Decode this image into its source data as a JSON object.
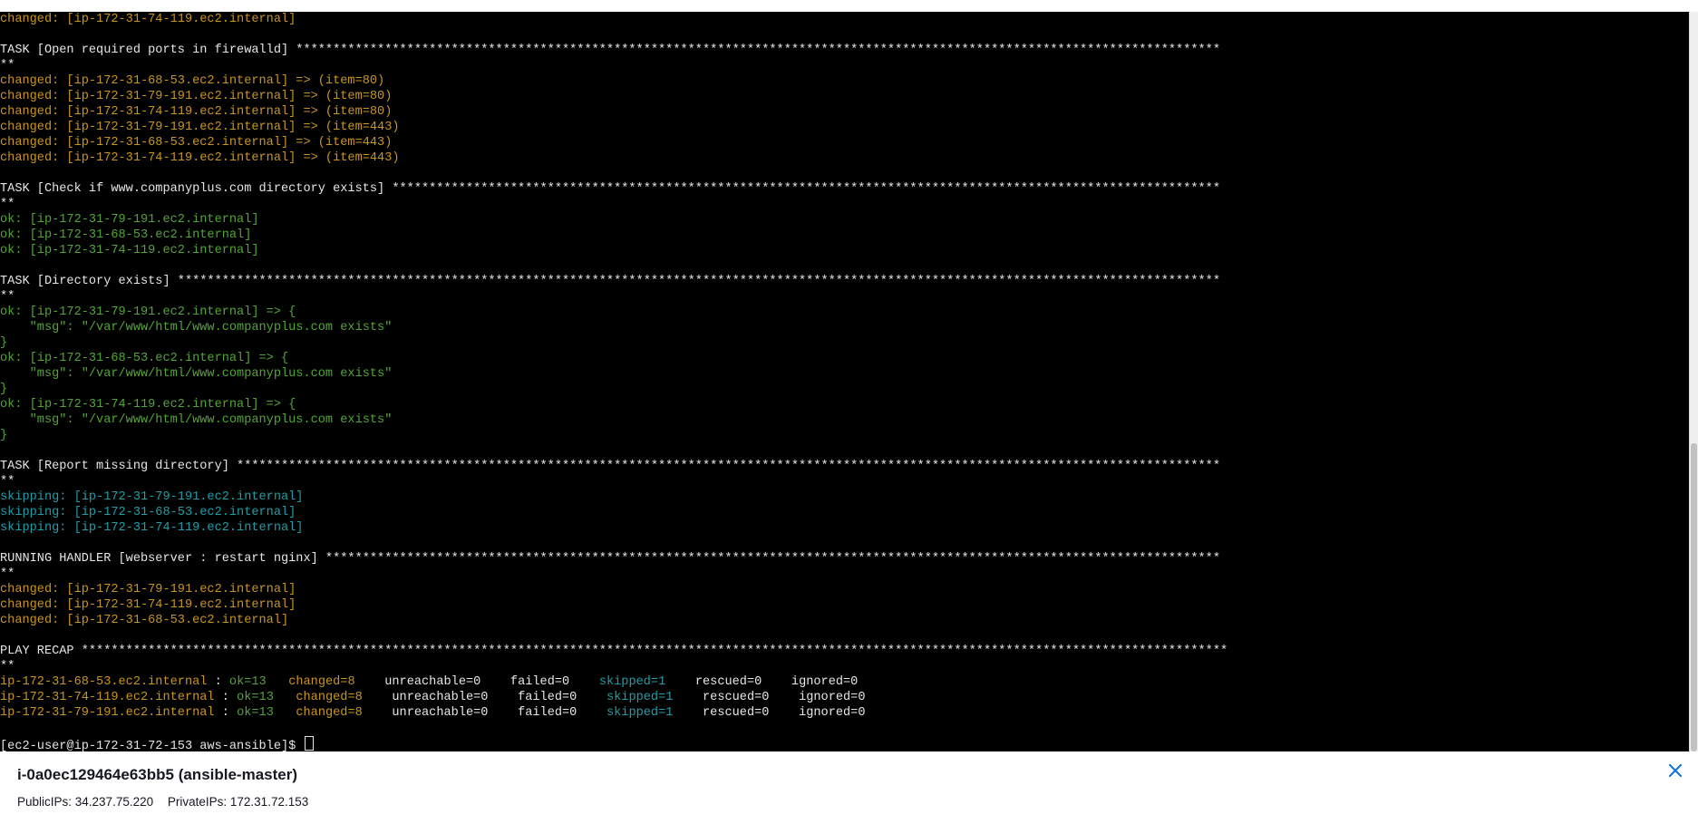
{
  "terminal": {
    "lines": [
      [
        [
          "changed",
          "changed: [ip-172-31-74-119.ec2.internal]"
        ]
      ],
      [
        [
          "default",
          ""
        ]
      ],
      [
        [
          "default",
          "TASK [Open required ports in firewalld] *****************************************************************************************************************************"
        ]
      ],
      [
        [
          "default",
          "**"
        ]
      ],
      [
        [
          "changed",
          "changed: [ip-172-31-68-53.ec2.internal] => (item=80)"
        ]
      ],
      [
        [
          "changed",
          "changed: [ip-172-31-79-191.ec2.internal] => (item=80)"
        ]
      ],
      [
        [
          "changed",
          "changed: [ip-172-31-74-119.ec2.internal] => (item=80)"
        ]
      ],
      [
        [
          "changed",
          "changed: [ip-172-31-79-191.ec2.internal] => (item=443)"
        ]
      ],
      [
        [
          "changed",
          "changed: [ip-172-31-68-53.ec2.internal] => (item=443)"
        ]
      ],
      [
        [
          "changed",
          "changed: [ip-172-31-74-119.ec2.internal] => (item=443)"
        ]
      ],
      [
        [
          "default",
          ""
        ]
      ],
      [
        [
          "default",
          "TASK [Check if www.companyplus.com directory exists] ****************************************************************************************************************"
        ]
      ],
      [
        [
          "default",
          "**"
        ]
      ],
      [
        [
          "ok",
          "ok: [ip-172-31-79-191.ec2.internal]"
        ]
      ],
      [
        [
          "ok",
          "ok: [ip-172-31-68-53.ec2.internal]"
        ]
      ],
      [
        [
          "ok",
          "ok: [ip-172-31-74-119.ec2.internal]"
        ]
      ],
      [
        [
          "default",
          ""
        ]
      ],
      [
        [
          "default",
          "TASK [Directory exists] *********************************************************************************************************************************************"
        ]
      ],
      [
        [
          "default",
          "**"
        ]
      ],
      [
        [
          "ok",
          "ok: [ip-172-31-79-191.ec2.internal] => {"
        ]
      ],
      [
        [
          "ok",
          "    \"msg\": \"/var/www/html/www.companyplus.com exists\""
        ]
      ],
      [
        [
          "ok",
          "}"
        ]
      ],
      [
        [
          "ok",
          "ok: [ip-172-31-68-53.ec2.internal] => {"
        ]
      ],
      [
        [
          "ok",
          "    \"msg\": \"/var/www/html/www.companyplus.com exists\""
        ]
      ],
      [
        [
          "ok",
          "}"
        ]
      ],
      [
        [
          "ok",
          "ok: [ip-172-31-74-119.ec2.internal] => {"
        ]
      ],
      [
        [
          "ok",
          "    \"msg\": \"/var/www/html/www.companyplus.com exists\""
        ]
      ],
      [
        [
          "ok",
          "}"
        ]
      ],
      [
        [
          "default",
          ""
        ]
      ],
      [
        [
          "default",
          "TASK [Report missing directory] *************************************************************************************************************************************"
        ]
      ],
      [
        [
          "default",
          "**"
        ]
      ],
      [
        [
          "skip",
          "skipping: [ip-172-31-79-191.ec2.internal]"
        ]
      ],
      [
        [
          "skip",
          "skipping: [ip-172-31-68-53.ec2.internal]"
        ]
      ],
      [
        [
          "skip",
          "skipping: [ip-172-31-74-119.ec2.internal]"
        ]
      ],
      [
        [
          "default",
          ""
        ]
      ],
      [
        [
          "default",
          "RUNNING HANDLER [webserver : restart nginx] *************************************************************************************************************************"
        ]
      ],
      [
        [
          "default",
          "**"
        ]
      ],
      [
        [
          "changed",
          "changed: [ip-172-31-79-191.ec2.internal]"
        ]
      ],
      [
        [
          "changed",
          "changed: [ip-172-31-74-119.ec2.internal]"
        ]
      ],
      [
        [
          "changed",
          "changed: [ip-172-31-68-53.ec2.internal]"
        ]
      ],
      [
        [
          "default",
          ""
        ]
      ],
      [
        [
          "default",
          "PLAY RECAP ***********************************************************************************************************************************************************"
        ]
      ],
      [
        [
          "default",
          "**"
        ]
      ],
      [
        [
          "changed",
          "ip-172-31-68-53.ec2.internal"
        ],
        [
          "default",
          " : "
        ],
        [
          "ok",
          "ok=13"
        ],
        [
          "default",
          "   "
        ],
        [
          "changed",
          "changed=8"
        ],
        [
          "default",
          "    unreachable=0    failed=0    "
        ],
        [
          "skip",
          "skipped=1"
        ],
        [
          "default",
          "    rescued=0    ignored=0"
        ]
      ],
      [
        [
          "changed",
          "ip-172-31-74-119.ec2.internal"
        ],
        [
          "default",
          " : "
        ],
        [
          "ok",
          "ok=13"
        ],
        [
          "default",
          "   "
        ],
        [
          "changed",
          "changed=8"
        ],
        [
          "default",
          "    unreachable=0    failed=0    "
        ],
        [
          "skip",
          "skipped=1"
        ],
        [
          "default",
          "    rescued=0    ignored=0"
        ]
      ],
      [
        [
          "changed",
          "ip-172-31-79-191.ec2.internal"
        ],
        [
          "default",
          " : "
        ],
        [
          "ok",
          "ok=13"
        ],
        [
          "default",
          "   "
        ],
        [
          "changed",
          "changed=8"
        ],
        [
          "default",
          "    unreachable=0    failed=0    "
        ],
        [
          "skip",
          "skipped=1"
        ],
        [
          "default",
          "    rescued=0    ignored=0"
        ]
      ],
      [
        [
          "default",
          ""
        ]
      ],
      [
        [
          "default",
          "[ec2-user@ip-172-31-72-153 aws-ansible]$ "
        ]
      ]
    ]
  },
  "colors": {
    "background": "#000000",
    "default": "#e6e6e6",
    "changed": "#c8951f",
    "ok": "#52a535",
    "skip": "#1e9ea8"
  },
  "footer": {
    "instance_title": "i-0a0ec129464e63bb5 (ansible-master)",
    "public_ips": "PublicIPs: 34.237.75.220",
    "private_ips": "PrivateIPs: 172.31.72.153",
    "close_icon": "close-icon"
  }
}
